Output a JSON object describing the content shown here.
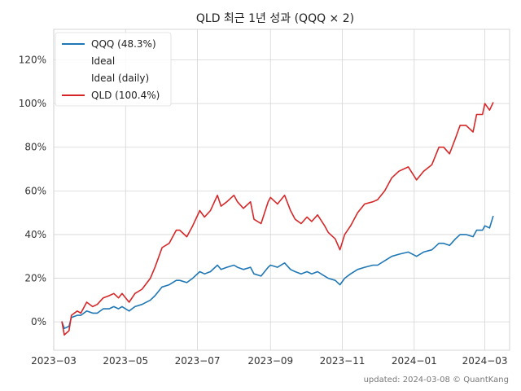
{
  "chart_data": {
    "type": "line",
    "title": "QLD 최근 1년 성과 (QQQ × 2)",
    "xlabel": "",
    "ylabel": "",
    "xlim": [
      "2023-03-01",
      "2024-03-22"
    ],
    "ylim": [
      -0.13,
      1.34
    ],
    "x_ticks": [
      "2023-03-01",
      "2023-05-01",
      "2023-07-01",
      "2023-09-01",
      "2023-11-01",
      "2024-01-01",
      "2024-03-01"
    ],
    "x_tick_labels": [
      "2023−03",
      "2023−05",
      "2023−07",
      "2023−09",
      "2023−11",
      "2024−01",
      "2024−03"
    ],
    "y_ticks": [
      0,
      0.2,
      0.4,
      0.6,
      0.8,
      1.0,
      1.2
    ],
    "y_tick_labels": [
      "0%",
      "20%",
      "40%",
      "60%",
      "80%",
      "100%",
      "120%"
    ],
    "grid": true,
    "legend_position": "top-left",
    "legend": [
      "QQQ (48.3%)",
      "Ideal",
      "Ideal (daily)",
      "QLD (100.4%)"
    ],
    "footer": "updated: 2024-03-08 © QuantKang",
    "series": [
      {
        "name": "QQQ (48.3%)",
        "color": "#1f77b4",
        "points": [
          [
            "2023-03-08",
            0.0
          ],
          [
            "2023-03-10",
            -0.03
          ],
          [
            "2023-03-14",
            -0.02
          ],
          [
            "2023-03-16",
            0.02
          ],
          [
            "2023-03-21",
            0.03
          ],
          [
            "2023-03-24",
            0.03
          ],
          [
            "2023-03-29",
            0.05
          ],
          [
            "2023-04-03",
            0.04
          ],
          [
            "2023-04-07",
            0.04
          ],
          [
            "2023-04-12",
            0.06
          ],
          [
            "2023-04-17",
            0.06
          ],
          [
            "2023-04-21",
            0.07
          ],
          [
            "2023-04-25",
            0.06
          ],
          [
            "2023-04-28",
            0.07
          ],
          [
            "2023-05-04",
            0.05
          ],
          [
            "2023-05-09",
            0.07
          ],
          [
            "2023-05-15",
            0.08
          ],
          [
            "2023-05-22",
            0.1
          ],
          [
            "2023-05-26",
            0.12
          ],
          [
            "2023-06-01",
            0.16
          ],
          [
            "2023-06-07",
            0.17
          ],
          [
            "2023-06-13",
            0.19
          ],
          [
            "2023-06-16",
            0.19
          ],
          [
            "2023-06-22",
            0.18
          ],
          [
            "2023-06-27",
            0.2
          ],
          [
            "2023-07-03",
            0.23
          ],
          [
            "2023-07-07",
            0.22
          ],
          [
            "2023-07-12",
            0.23
          ],
          [
            "2023-07-18",
            0.26
          ],
          [
            "2023-07-21",
            0.24
          ],
          [
            "2023-07-26",
            0.25
          ],
          [
            "2023-08-01",
            0.26
          ],
          [
            "2023-08-04",
            0.25
          ],
          [
            "2023-08-09",
            0.24
          ],
          [
            "2023-08-15",
            0.25
          ],
          [
            "2023-08-18",
            0.22
          ],
          [
            "2023-08-24",
            0.21
          ],
          [
            "2023-08-30",
            0.25
          ],
          [
            "2023-09-01",
            0.26
          ],
          [
            "2023-09-07",
            0.25
          ],
          [
            "2023-09-13",
            0.27
          ],
          [
            "2023-09-18",
            0.24
          ],
          [
            "2023-09-22",
            0.23
          ],
          [
            "2023-09-27",
            0.22
          ],
          [
            "2023-10-02",
            0.23
          ],
          [
            "2023-10-06",
            0.22
          ],
          [
            "2023-10-11",
            0.23
          ],
          [
            "2023-10-17",
            0.21
          ],
          [
            "2023-10-20",
            0.2
          ],
          [
            "2023-10-26",
            0.19
          ],
          [
            "2023-10-30",
            0.17
          ],
          [
            "2023-11-03",
            0.2
          ],
          [
            "2023-11-08",
            0.22
          ],
          [
            "2023-11-14",
            0.24
          ],
          [
            "2023-11-20",
            0.25
          ],
          [
            "2023-11-27",
            0.26
          ],
          [
            "2023-12-01",
            0.26
          ],
          [
            "2023-12-07",
            0.28
          ],
          [
            "2023-12-13",
            0.3
          ],
          [
            "2023-12-19",
            0.31
          ],
          [
            "2023-12-27",
            0.32
          ],
          [
            "2024-01-03",
            0.3
          ],
          [
            "2024-01-09",
            0.32
          ],
          [
            "2024-01-16",
            0.33
          ],
          [
            "2024-01-22",
            0.36
          ],
          [
            "2024-01-26",
            0.36
          ],
          [
            "2024-01-31",
            0.35
          ],
          [
            "2024-02-05",
            0.38
          ],
          [
            "2024-02-09",
            0.4
          ],
          [
            "2024-02-14",
            0.4
          ],
          [
            "2024-02-20",
            0.39
          ],
          [
            "2024-02-23",
            0.42
          ],
          [
            "2024-02-28",
            0.42
          ],
          [
            "2024-03-01",
            0.44
          ],
          [
            "2024-03-05",
            0.43
          ],
          [
            "2024-03-08",
            0.483
          ]
        ]
      },
      {
        "name": "QLD (100.4%)",
        "color": "#d62728",
        "points": [
          [
            "2023-03-08",
            0.0
          ],
          [
            "2023-03-10",
            -0.06
          ],
          [
            "2023-03-14",
            -0.04
          ],
          [
            "2023-03-16",
            0.03
          ],
          [
            "2023-03-21",
            0.05
          ],
          [
            "2023-03-24",
            0.04
          ],
          [
            "2023-03-29",
            0.09
          ],
          [
            "2023-04-03",
            0.07
          ],
          [
            "2023-04-07",
            0.08
          ],
          [
            "2023-04-12",
            0.11
          ],
          [
            "2023-04-17",
            0.12
          ],
          [
            "2023-04-21",
            0.13
          ],
          [
            "2023-04-25",
            0.11
          ],
          [
            "2023-04-28",
            0.13
          ],
          [
            "2023-05-04",
            0.09
          ],
          [
            "2023-05-09",
            0.13
          ],
          [
            "2023-05-15",
            0.15
          ],
          [
            "2023-05-22",
            0.2
          ],
          [
            "2023-05-26",
            0.25
          ],
          [
            "2023-06-01",
            0.34
          ],
          [
            "2023-06-07",
            0.36
          ],
          [
            "2023-06-13",
            0.42
          ],
          [
            "2023-06-16",
            0.42
          ],
          [
            "2023-06-22",
            0.39
          ],
          [
            "2023-06-27",
            0.44
          ],
          [
            "2023-07-03",
            0.51
          ],
          [
            "2023-07-07",
            0.48
          ],
          [
            "2023-07-12",
            0.51
          ],
          [
            "2023-07-18",
            0.58
          ],
          [
            "2023-07-21",
            0.53
          ],
          [
            "2023-07-26",
            0.55
          ],
          [
            "2023-08-01",
            0.58
          ],
          [
            "2023-08-04",
            0.55
          ],
          [
            "2023-08-09",
            0.52
          ],
          [
            "2023-08-15",
            0.55
          ],
          [
            "2023-08-18",
            0.47
          ],
          [
            "2023-08-24",
            0.45
          ],
          [
            "2023-08-30",
            0.55
          ],
          [
            "2023-09-01",
            0.57
          ],
          [
            "2023-09-07",
            0.54
          ],
          [
            "2023-09-13",
            0.58
          ],
          [
            "2023-09-18",
            0.51
          ],
          [
            "2023-09-22",
            0.47
          ],
          [
            "2023-09-27",
            0.45
          ],
          [
            "2023-10-02",
            0.48
          ],
          [
            "2023-10-06",
            0.46
          ],
          [
            "2023-10-11",
            0.49
          ],
          [
            "2023-10-17",
            0.44
          ],
          [
            "2023-10-20",
            0.41
          ],
          [
            "2023-10-26",
            0.38
          ],
          [
            "2023-10-30",
            0.33
          ],
          [
            "2023-11-03",
            0.4
          ],
          [
            "2023-11-08",
            0.44
          ],
          [
            "2023-11-14",
            0.5
          ],
          [
            "2023-11-20",
            0.54
          ],
          [
            "2023-11-27",
            0.55
          ],
          [
            "2023-12-01",
            0.56
          ],
          [
            "2023-12-07",
            0.6
          ],
          [
            "2023-12-13",
            0.66
          ],
          [
            "2023-12-19",
            0.69
          ],
          [
            "2023-12-27",
            0.71
          ],
          [
            "2024-01-03",
            0.65
          ],
          [
            "2024-01-09",
            0.69
          ],
          [
            "2024-01-16",
            0.72
          ],
          [
            "2024-01-22",
            0.8
          ],
          [
            "2024-01-26",
            0.8
          ],
          [
            "2024-01-31",
            0.77
          ],
          [
            "2024-02-05",
            0.84
          ],
          [
            "2024-02-09",
            0.9
          ],
          [
            "2024-02-14",
            0.9
          ],
          [
            "2024-02-20",
            0.87
          ],
          [
            "2024-02-23",
            0.95
          ],
          [
            "2024-02-28",
            0.95
          ],
          [
            "2024-03-01",
            1.0
          ],
          [
            "2024-03-05",
            0.97
          ],
          [
            "2024-03-08",
            1.004
          ]
        ]
      }
    ]
  }
}
